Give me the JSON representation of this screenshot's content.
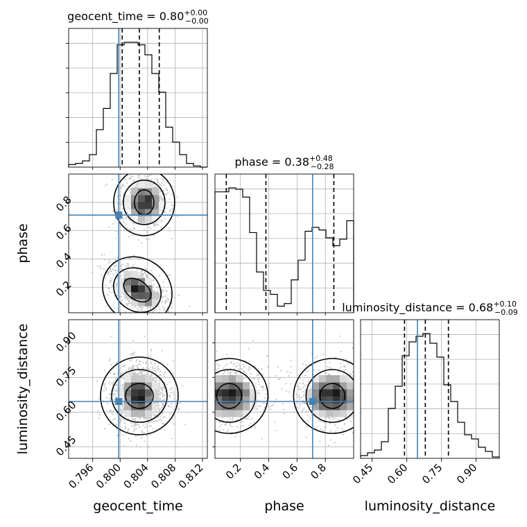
{
  "chart_data": {
    "type": "corner",
    "parameters": [
      "geocent_time",
      "phase",
      "luminosity_distance"
    ],
    "truths": {
      "geocent_time": 0.7998,
      "phase": 0.71,
      "luminosity_distance": 0.646
    },
    "titles": {
      "geocent_time": {
        "name": "geocent_time",
        "value": "0.80",
        "plus": "+0.00",
        "minus": "−0.00"
      },
      "phase": {
        "name": "phase",
        "value": "0.38",
        "plus": "+0.48",
        "minus": "−0.28"
      },
      "luminosity_distance": {
        "name": "luminosity_distance",
        "value": "0.68",
        "plus": "+0.10",
        "minus": "−0.09"
      }
    },
    "axes": {
      "geocent_time": {
        "range": [
          0.7925,
          0.8127
        ],
        "ticks": [
          0.796,
          0.8,
          0.804,
          0.808,
          0.812
        ],
        "tick_labels": [
          "0.796",
          "0.800",
          "0.804",
          "0.808",
          "0.812"
        ]
      },
      "phase": {
        "range": [
          0.02,
          1.0
        ],
        "ticks": [
          0.2,
          0.4,
          0.6,
          0.8
        ],
        "tick_labels": [
          "0.2",
          "0.4",
          "0.6",
          "0.8"
        ]
      },
      "luminosity_distance": {
        "range": [
          0.4,
          1.0
        ],
        "ticks": [
          0.45,
          0.6,
          0.75,
          0.9
        ],
        "tick_labels": [
          "0.45",
          "0.60",
          "0.75",
          "0.90"
        ]
      }
    },
    "histograms": {
      "geocent_time": {
        "quantiles": [
          0.8003,
          0.8028,
          0.8057
        ],
        "counts": [
          2,
          3,
          5,
          10,
          30,
          47,
          75,
          98,
          100,
          100,
          98,
          90,
          75,
          60,
          32,
          20,
          10,
          3,
          1,
          0
        ]
      },
      "phase": {
        "quantiles": [
          0.1,
          0.38,
          0.86
        ],
        "counts": [
          92,
          92,
          95,
          94,
          88,
          61,
          31,
          17,
          14,
          5,
          7,
          25,
          40,
          62,
          65,
          63,
          57,
          51,
          56,
          70
        ]
      },
      "luminosity_distance": {
        "quantiles": [
          0.59,
          0.68,
          0.78
        ],
        "counts": [
          2,
          4,
          6,
          12,
          36,
          52,
          74,
          84,
          88,
          90,
          83,
          73,
          53,
          41,
          26,
          17,
          14,
          8,
          5,
          1
        ]
      }
    },
    "grid": true
  }
}
